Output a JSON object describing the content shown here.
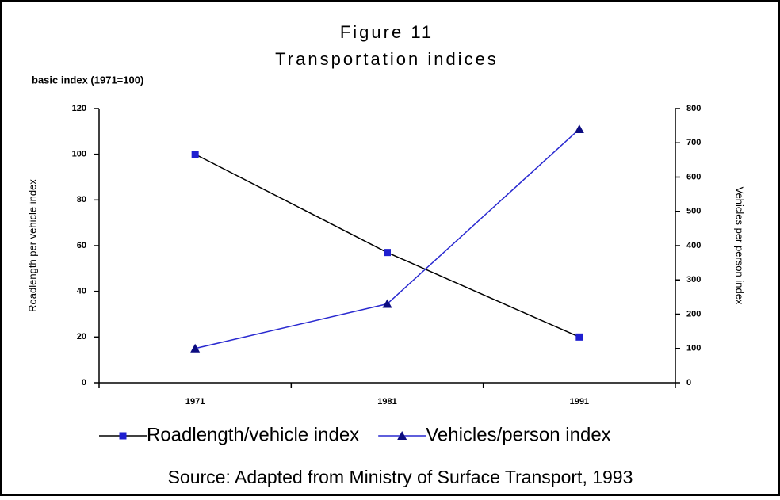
{
  "chart_data": {
    "type": "line",
    "title": "Figure 11",
    "subtitle": "Transportation indices",
    "unit_label": "basic index (1971=100)",
    "y_label": "Roadlength per vehicle index",
    "y2_label": "Vehicles per person index",
    "categories": [
      "1971",
      "1981",
      "1991"
    ],
    "series": [
      {
        "name": "Roadlength/vehicle index",
        "color": "#000000",
        "marker": "square",
        "marker_color": "#1f1fd0",
        "values": [
          100,
          57,
          20
        ]
      },
      {
        "name": "Vehicles/person index",
        "color": "#2a2ad0",
        "marker": "triangle",
        "marker_color": "#0c0c80",
        "axis": "y2",
        "values": [
          100,
          230,
          740
        ]
      }
    ],
    "ylim": [
      0,
      120
    ],
    "yticks": [
      0,
      20,
      40,
      60,
      80,
      100,
      120
    ],
    "y2lim": [
      0,
      800
    ],
    "y2ticks": [
      0,
      100,
      200,
      300,
      400,
      500,
      600,
      700,
      800
    ],
    "source": "Source: Adapted from Ministry of Surface Transport, 1993"
  }
}
